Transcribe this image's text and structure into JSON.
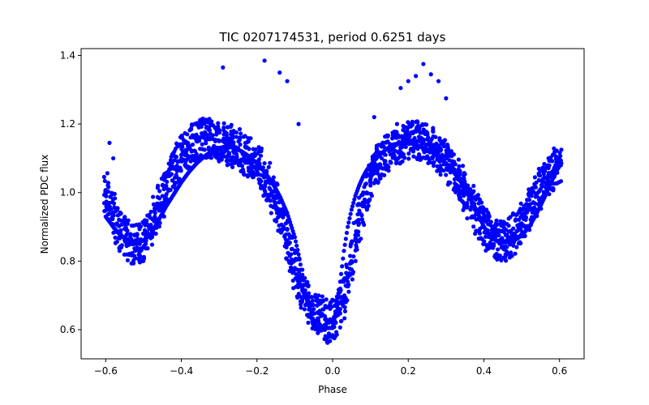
{
  "chart_data": {
    "type": "scatter",
    "title": "TIC 0207174531, period 0.6251 days",
    "xlabel": "Phase",
    "ylabel": "Normalized PDC flux",
    "xlim": [
      -0.665,
      0.665
    ],
    "ylim": [
      0.515,
      1.42
    ],
    "xticks": [
      -0.6,
      -0.4,
      -0.2,
      0.0,
      0.2,
      0.4,
      0.6
    ],
    "xtick_labels": [
      "−0.6",
      "−0.4",
      "−0.2",
      "0.0",
      "0.2",
      "0.4",
      "0.6"
    ],
    "yticks": [
      0.6,
      0.8,
      1.0,
      1.2,
      1.4
    ],
    "ytick_labels": [
      "0.6",
      "0.8",
      "1.0",
      "1.2",
      "1.4"
    ],
    "grid": false,
    "marker_color": "#0000ff",
    "series": [
      {
        "name": "",
        "role": "model-curve",
        "x": [
          -0.6,
          -0.58,
          -0.56,
          -0.54,
          -0.52,
          -0.5,
          -0.48,
          -0.46,
          -0.44,
          -0.42,
          -0.4,
          -0.38,
          -0.36,
          -0.34,
          -0.32,
          -0.3,
          -0.28,
          -0.26,
          -0.24,
          -0.22,
          -0.2,
          -0.18,
          -0.16,
          -0.14,
          -0.12,
          -0.1,
          -0.09,
          -0.08,
          -0.07,
          -0.06,
          -0.05,
          -0.04,
          -0.03,
          -0.02,
          -0.01,
          0.0,
          0.01,
          0.02,
          0.03,
          0.04,
          0.05,
          0.06,
          0.07,
          0.08,
          0.09,
          0.1,
          0.12,
          0.14,
          0.16,
          0.18,
          0.2,
          0.22,
          0.24,
          0.26,
          0.28,
          0.3,
          0.32,
          0.34,
          0.36,
          0.38,
          0.4,
          0.42,
          0.44,
          0.46,
          0.48,
          0.5,
          0.52,
          0.54,
          0.56,
          0.58,
          0.6
        ],
        "y": [
          0.93,
          0.9,
          0.875,
          0.86,
          0.855,
          0.86,
          0.88,
          0.92,
          0.96,
          0.995,
          1.03,
          1.06,
          1.085,
          1.105,
          1.12,
          1.13,
          1.135,
          1.13,
          1.12,
          1.105,
          1.085,
          1.06,
          1.03,
          0.99,
          0.94,
          0.87,
          0.82,
          0.76,
          0.7,
          0.645,
          0.62,
          0.61,
          0.605,
          0.605,
          0.605,
          0.605,
          0.65,
          0.74,
          0.83,
          0.9,
          0.95,
          0.99,
          1.02,
          1.045,
          1.065,
          1.08,
          1.105,
          1.125,
          1.14,
          1.145,
          1.145,
          1.14,
          1.13,
          1.12,
          1.105,
          1.085,
          1.06,
          1.03,
          0.99,
          0.95,
          0.9,
          0.87,
          0.855,
          0.855,
          0.86,
          0.875,
          0.9,
          0.94,
          0.985,
          1.035,
          1.08
        ]
      },
      {
        "name": "",
        "role": "observations",
        "x": [
          -0.6,
          -0.59,
          -0.58,
          -0.57,
          -0.56,
          -0.55,
          -0.54,
          -0.53,
          -0.52,
          -0.51,
          -0.5,
          -0.49,
          -0.48,
          -0.47,
          -0.46,
          -0.45,
          -0.44,
          -0.43,
          -0.42,
          -0.41,
          -0.4,
          -0.39,
          -0.38,
          -0.37,
          -0.36,
          -0.35,
          -0.34,
          -0.33,
          -0.32,
          -0.31,
          -0.3,
          -0.29,
          -0.28,
          -0.27,
          -0.26,
          -0.25,
          -0.24,
          -0.23,
          -0.22,
          -0.21,
          -0.2,
          -0.19,
          -0.18,
          -0.17,
          -0.16,
          -0.15,
          -0.14,
          -0.13,
          -0.12,
          -0.11,
          -0.1,
          -0.09,
          -0.08,
          -0.07,
          -0.06,
          -0.05,
          -0.04,
          -0.03,
          -0.02,
          -0.01,
          0.0,
          0.01,
          0.02,
          0.03,
          0.04,
          0.05,
          0.06,
          0.07,
          0.08,
          0.09,
          0.1,
          0.11,
          0.12,
          0.13,
          0.14,
          0.15,
          0.16,
          0.17,
          0.18,
          0.19,
          0.2,
          0.21,
          0.22,
          0.23,
          0.24,
          0.25,
          0.26,
          0.27,
          0.28,
          0.29,
          0.3,
          0.31,
          0.32,
          0.33,
          0.34,
          0.35,
          0.36,
          0.37,
          0.38,
          0.39,
          0.4,
          0.41,
          0.42,
          0.43,
          0.44,
          0.45,
          0.46,
          0.47,
          0.48,
          0.49,
          0.5,
          0.51,
          0.52,
          0.53,
          0.54,
          0.55,
          0.56,
          0.57,
          0.58,
          0.59,
          0.6
        ],
        "y": [
          1.0,
          0.97,
          0.94,
          0.91,
          0.89,
          0.87,
          0.86,
          0.85,
          0.85,
          0.85,
          0.86,
          0.88,
          0.9,
          0.93,
          0.96,
          0.99,
          1.02,
          1.05,
          1.07,
          1.09,
          1.11,
          1.12,
          1.13,
          1.14,
          1.15,
          1.16,
          1.16,
          1.16,
          1.16,
          1.15,
          1.15,
          1.15,
          1.14,
          1.14,
          1.13,
          1.13,
          1.12,
          1.11,
          1.1,
          1.09,
          1.08,
          1.07,
          1.05,
          1.03,
          1.0,
          0.97,
          0.94,
          0.9,
          0.86,
          0.82,
          0.78,
          0.75,
          0.72,
          0.7,
          0.68,
          0.66,
          0.65,
          0.64,
          0.63,
          0.62,
          0.63,
          0.64,
          0.66,
          0.69,
          0.74,
          0.8,
          0.86,
          0.91,
          0.96,
          1.0,
          1.03,
          1.06,
          1.08,
          1.1,
          1.11,
          1.12,
          1.13,
          1.14,
          1.14,
          1.15,
          1.15,
          1.15,
          1.15,
          1.15,
          1.15,
          1.14,
          1.14,
          1.13,
          1.12,
          1.11,
          1.1,
          1.08,
          1.06,
          1.04,
          1.02,
          1.0,
          0.98,
          0.96,
          0.94,
          0.92,
          0.9,
          0.89,
          0.88,
          0.87,
          0.86,
          0.86,
          0.86,
          0.87,
          0.88,
          0.89,
          0.91,
          0.93,
          0.95,
          0.97,
          0.99,
          1.01,
          1.03,
          1.05,
          1.06,
          1.07,
          1.08
        ],
        "spread": 0.06
      },
      {
        "name": "",
        "role": "outliers",
        "x": [
          -0.59,
          -0.58,
          -0.29,
          -0.18,
          -0.14,
          -0.12,
          -0.09,
          0.07,
          0.11,
          0.18,
          0.2,
          0.22,
          0.24,
          0.26,
          0.28,
          0.3
        ],
        "y": [
          1.145,
          1.1,
          1.365,
          1.385,
          1.35,
          1.325,
          1.2,
          0.985,
          1.22,
          1.305,
          1.325,
          1.34,
          1.375,
          1.345,
          1.325,
          1.275
        ]
      }
    ]
  }
}
